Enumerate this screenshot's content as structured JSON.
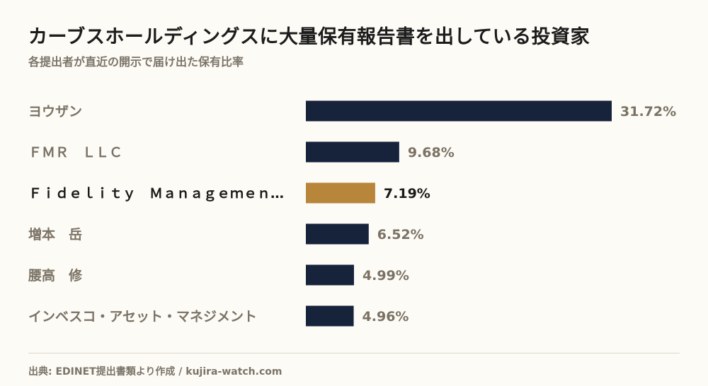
{
  "header": {
    "title": "カーブスホールディングスに大量保有報告書を出している投資家",
    "subtitle": "各提出者が直近の開示で届け出た保有比率"
  },
  "footer": {
    "source": "出典: EDINET提出書類より作成 / kujira-watch.com"
  },
  "colors": {
    "bar_default": "#17223b",
    "bar_highlight": "#b8863a"
  },
  "chart_data": {
    "type": "bar",
    "orientation": "horizontal",
    "categories": [
      "ヨウザン",
      "ＦＭＲ　ＬＬＣ",
      "Ｆｉｄｅｌｉｔｙ　Ｍａｎａｇｅｍｅｎ…",
      "増本　岳",
      "腰高　修",
      "インベスコ・アセット・マネジメント"
    ],
    "values": [
      31.72,
      9.68,
      7.19,
      6.52,
      4.99,
      4.96
    ],
    "value_labels": [
      "31.72%",
      "9.68%",
      "7.19%",
      "6.52%",
      "4.99%",
      "4.96%"
    ],
    "highlight_index": 2,
    "xlim": [
      0,
      31.72
    ],
    "grid": false
  }
}
